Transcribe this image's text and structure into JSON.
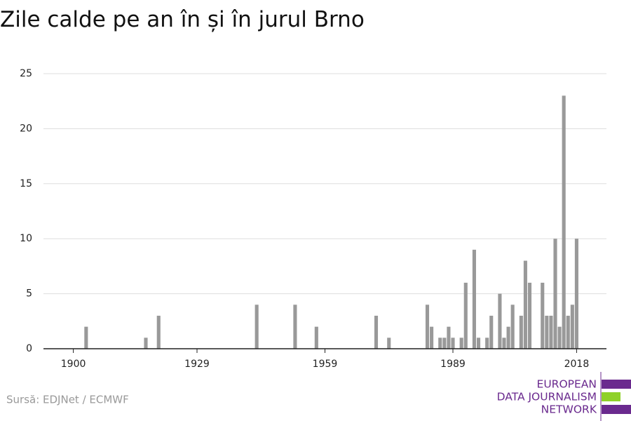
{
  "chart_data": {
    "type": "bar",
    "title": "Zile calde pe an în și în jurul Brno",
    "x": [
      1903,
      1917,
      1920,
      1943,
      1952,
      1957,
      1971,
      1974,
      1983,
      1984,
      1986,
      1987,
      1988,
      1989,
      1991,
      1992,
      1994,
      1995,
      1997,
      1998,
      2000,
      2001,
      2002,
      2003,
      2005,
      2006,
      2007,
      2010,
      2011,
      2012,
      2013,
      2014,
      2015,
      2016,
      2017,
      2018
    ],
    "values": [
      2,
      1,
      3,
      4,
      4,
      2,
      3,
      1,
      4,
      2,
      1,
      1,
      2,
      1,
      1,
      6,
      9,
      1,
      1,
      3,
      5,
      1,
      2,
      4,
      3,
      8,
      6,
      6,
      3,
      3,
      10,
      2,
      23,
      3,
      4,
      10
    ],
    "color": "#999999",
    "xlim": [
      1893,
      2025
    ],
    "xticks": [
      1900,
      1929,
      1959,
      1989,
      2018
    ],
    "ylim": [
      0,
      25
    ],
    "yticks": [
      0,
      5,
      10,
      15,
      20,
      25
    ],
    "grid": true
  },
  "source": "Sursă: EDJNet / ECMWF",
  "logo": [
    "EUROPEAN",
    "DATA JOURNALISM",
    "NETWORK"
  ]
}
